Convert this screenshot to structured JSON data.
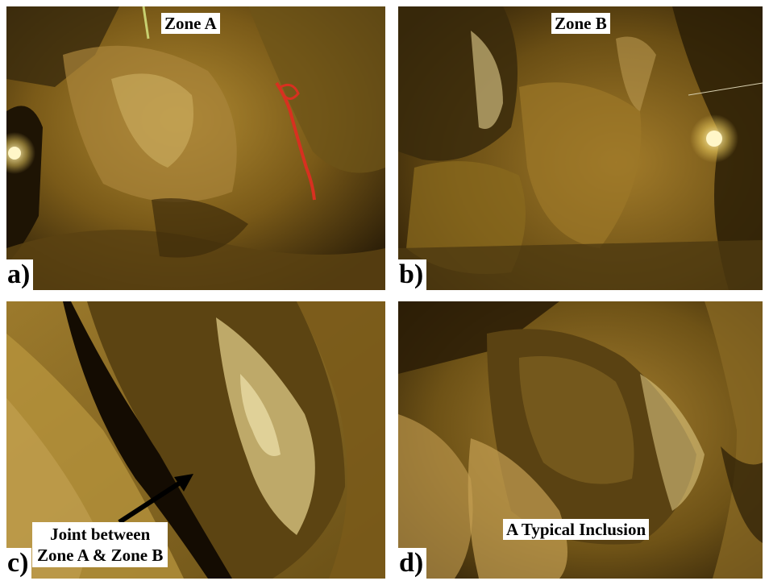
{
  "panels": {
    "a": {
      "letter": "a)",
      "label": "Zone A"
    },
    "b": {
      "letter": "b)",
      "label": "Zone B"
    },
    "c": {
      "letter": "c)",
      "label_line1": "Joint between",
      "label_line2": "Zone A & Zone B"
    },
    "d": {
      "letter": "d)",
      "label": "A Typical Inclusion"
    }
  },
  "colors": {
    "rock_dark": "#3a2a0c",
    "rock_mid": "#8a6a1e",
    "rock_light": "#c9a24a",
    "highlight": "#f1e3a0",
    "lamp": "#fff6c8",
    "red_mark": "#d83020",
    "arrow": "#000000"
  },
  "icons": {
    "lamp_a": "lamp-icon",
    "lamp_b": "lamp-icon",
    "arrow_c": "arrow-icon"
  }
}
